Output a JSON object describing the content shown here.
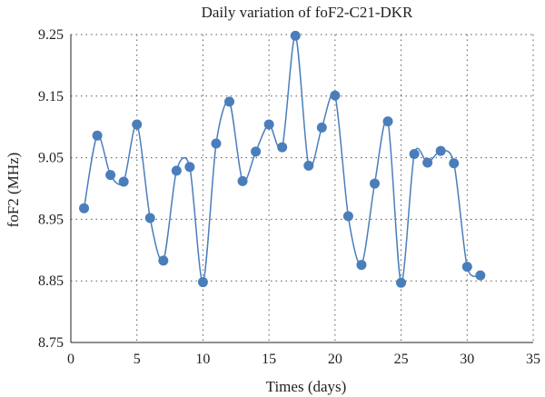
{
  "chart_data": {
    "type": "line",
    "title": "Daily variation of foF2-C21-DKR",
    "xlabel": "Times (days)",
    "ylabel": "foF2 (MHz)",
    "xlim": [
      0,
      35
    ],
    "ylim": [
      8.75,
      9.25
    ],
    "xticks": [
      0,
      5,
      10,
      15,
      20,
      25,
      30,
      35
    ],
    "yticks": [
      8.75,
      8.85,
      8.95,
      9.05,
      9.15,
      9.25
    ],
    "ytick_labels": [
      "8.75",
      "8.85",
      "8.95",
      "9.05",
      "9.15",
      "9.25"
    ],
    "grid": true,
    "grid_style": "dotted",
    "smooth": true,
    "color": "#4a7ebb",
    "series": [
      {
        "x": [
          1,
          2,
          3,
          4,
          5,
          6,
          7,
          8,
          9,
          10,
          11,
          12,
          13,
          14,
          15,
          16,
          17,
          18,
          19,
          20,
          21,
          22,
          23,
          24,
          25,
          26,
          27,
          28,
          29,
          30,
          31
        ],
        "y": [
          8.968,
          9.086,
          9.022,
          9.011,
          9.104,
          8.952,
          8.883,
          9.029,
          9.035,
          8.848,
          9.073,
          9.141,
          9.012,
          9.06,
          9.104,
          9.067,
          9.248,
          9.037,
          9.099,
          9.151,
          8.955,
          8.876,
          9.008,
          9.109,
          8.847,
          9.056,
          9.042,
          9.061,
          9.041,
          8.873,
          8.859
        ]
      }
    ]
  }
}
